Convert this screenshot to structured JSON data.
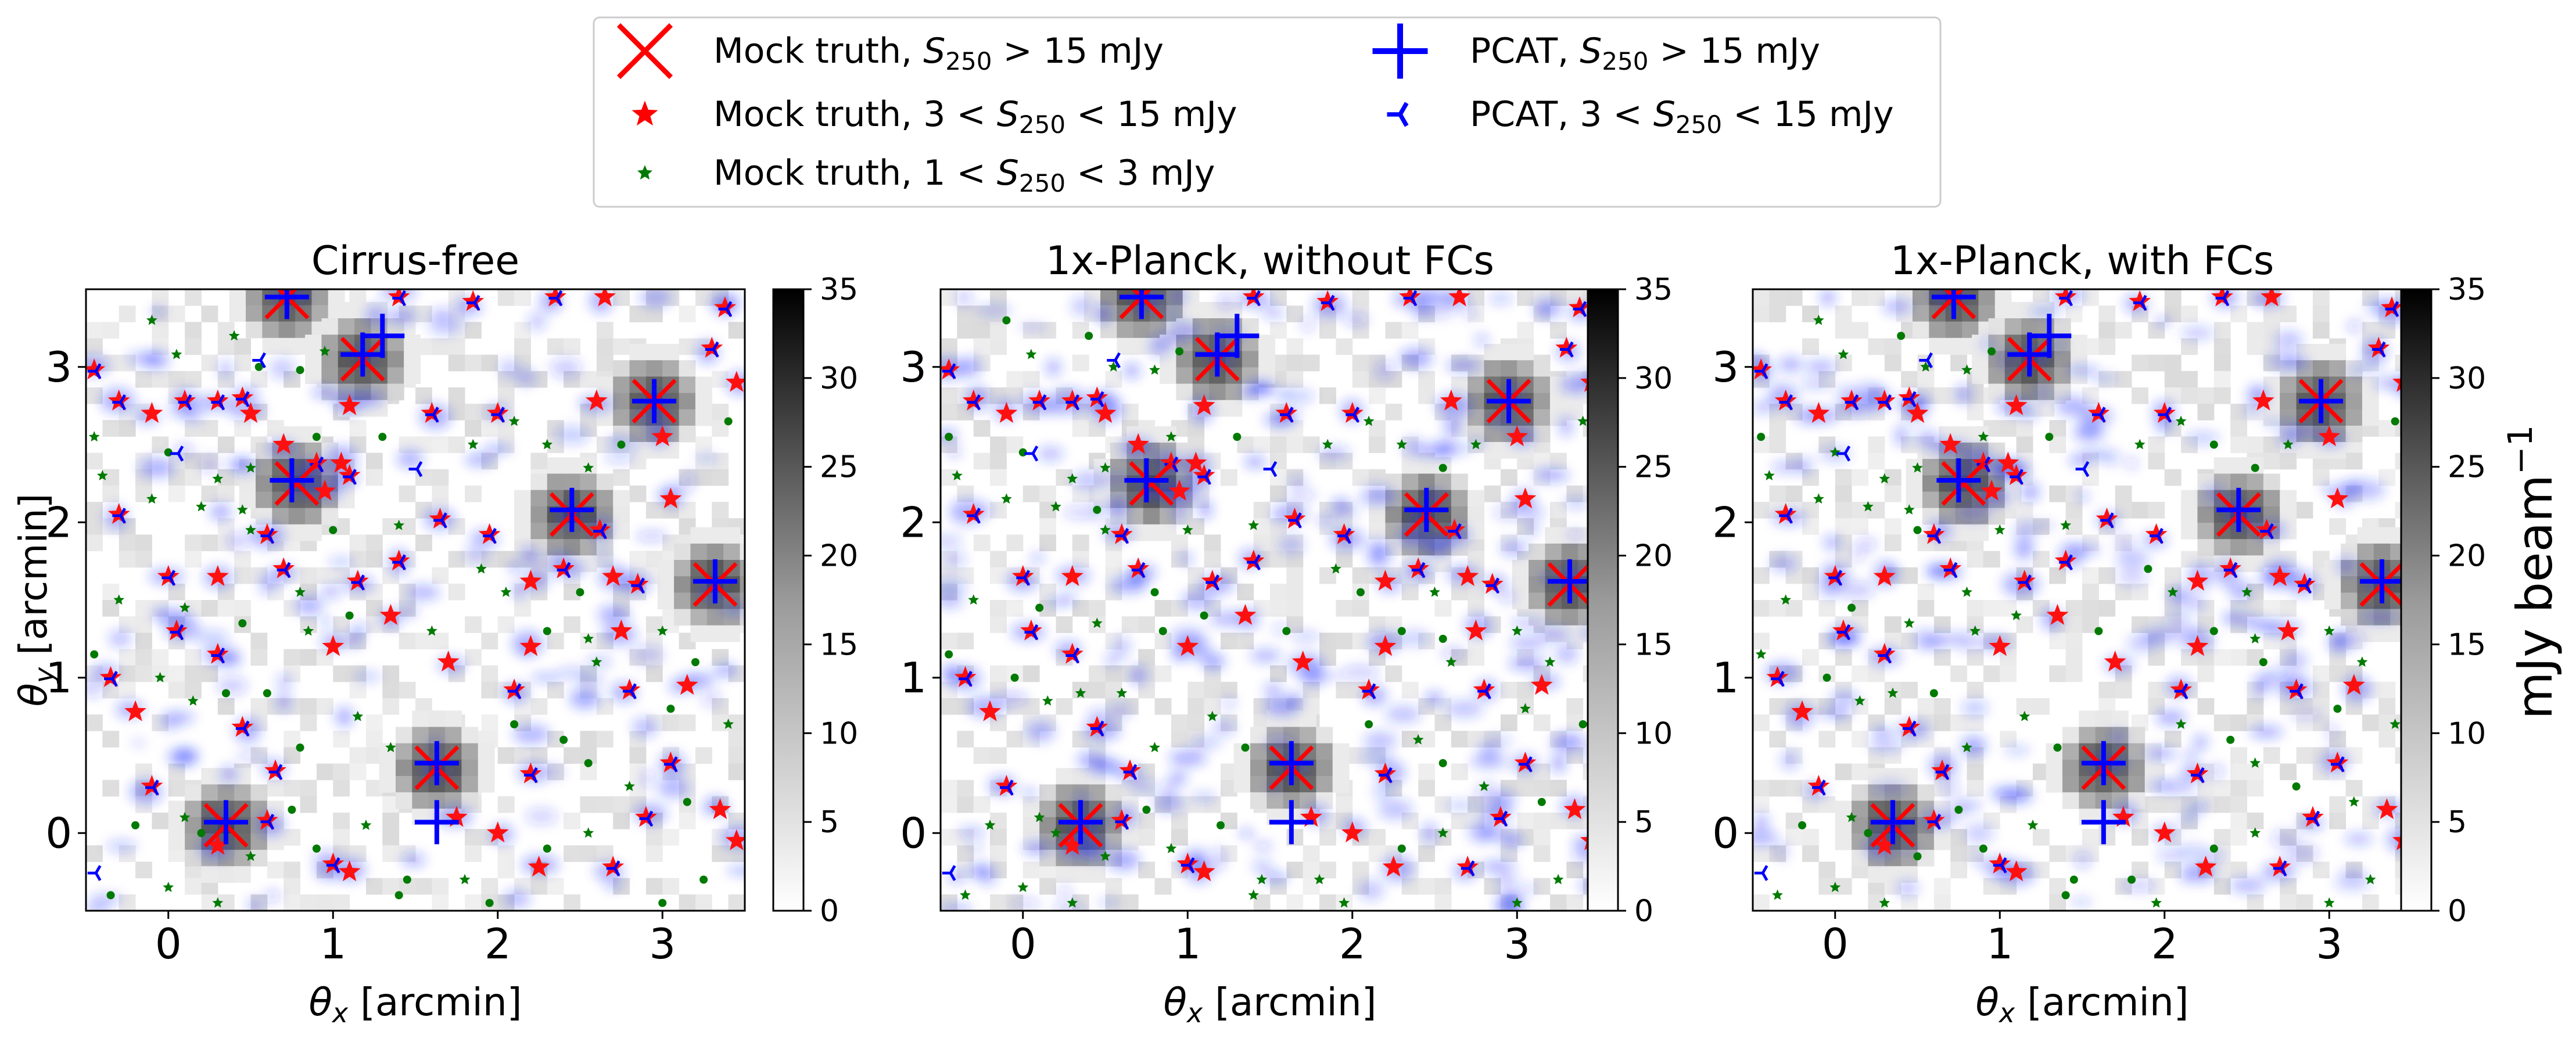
{
  "legend": {
    "items": [
      {
        "key": "mock_bright",
        "prefix": "Mock truth, ",
        "math": "S",
        "sub": "250",
        "suffix": " > 15 mJy",
        "color": "#ff0000",
        "marker": "x-cross"
      },
      {
        "key": "mock_mid",
        "prefix": "Mock truth, 3 < ",
        "math": "S",
        "sub": "250",
        "suffix": " < 15 mJy",
        "color": "#ff0000",
        "marker": "star"
      },
      {
        "key": "mock_faint",
        "prefix": "Mock truth, 1 < ",
        "math": "S",
        "sub": "250",
        "suffix": " < 3 mJy",
        "color": "#007a00",
        "marker": "small-star"
      },
      {
        "key": "pcat_bright",
        "prefix": "PCAT, ",
        "math": "S",
        "sub": "250",
        "suffix": " > 15 mJy",
        "color": "#0000ff",
        "marker": "plus"
      },
      {
        "key": "pcat_mid",
        "prefix": "PCAT, 3 < ",
        "math": "S",
        "sub": "250",
        "suffix": " < 15 mJy",
        "color": "#0000ff",
        "marker": "tri-left"
      }
    ]
  },
  "colorbar": {
    "ticks": [
      "0",
      "5",
      "10",
      "15",
      "20",
      "25",
      "30",
      "35"
    ],
    "label": "mJy beam",
    "label_sup": "−1"
  },
  "axes": {
    "xlabel_math": "θ",
    "xlabel_sub": "x",
    "xlabel_text": " [arcmin]",
    "ylabel_math": "θ",
    "ylabel_sub": "y",
    "ylabel_text": " [arcmin]",
    "xticks": [
      "0",
      "1",
      "2",
      "3"
    ],
    "yticks": [
      "0",
      "1",
      "2",
      "3"
    ]
  },
  "chart_data": [
    {
      "type": "heatmap",
      "title": "Cirrus-free",
      "xlim": [
        -0.5,
        3.5
      ],
      "ylim": [
        -0.5,
        3.5
      ],
      "colorbar_range": [
        0,
        35
      ],
      "colormap": "greys",
      "pcat_bright": [
        [
          0.72,
          3.45
        ],
        [
          1.18,
          3.08
        ],
        [
          0.75,
          2.27
        ],
        [
          2.45,
          2.08
        ],
        [
          3.32,
          1.62
        ],
        [
          2.95,
          2.78
        ],
        [
          1.63,
          0.45
        ],
        [
          1.63,
          0.07
        ],
        [
          0.35,
          0.07
        ],
        [
          1.3,
          3.2
        ]
      ],
      "mock_bright": [
        [
          0.72,
          3.45
        ],
        [
          1.18,
          3.05
        ],
        [
          0.78,
          2.25
        ],
        [
          2.45,
          2.05
        ],
        [
          1.63,
          0.42
        ],
        [
          3.32,
          1.6
        ],
        [
          2.95,
          2.78
        ],
        [
          0.35,
          0.05
        ]
      ],
      "mock_mid": [
        [
          -0.45,
          2.98
        ],
        [
          -0.3,
          2.78
        ],
        [
          -0.1,
          2.7
        ],
        [
          0.1,
          2.78
        ],
        [
          0.3,
          2.78
        ],
        [
          0.45,
          2.8
        ],
        [
          0.5,
          2.7
        ],
        [
          0.7,
          2.5
        ],
        [
          0.9,
          2.38
        ],
        [
          1.05,
          2.38
        ],
        [
          1.1,
          2.3
        ],
        [
          0.95,
          2.2
        ],
        [
          0.6,
          1.92
        ],
        [
          -0.3,
          2.05
        ],
        [
          0.0,
          1.65
        ],
        [
          0.3,
          1.65
        ],
        [
          0.7,
          1.7
        ],
        [
          1.15,
          1.62
        ],
        [
          1.4,
          1.75
        ],
        [
          1.65,
          2.02
        ],
        [
          1.95,
          1.92
        ],
        [
          2.2,
          1.62
        ],
        [
          2.4,
          1.7
        ],
        [
          2.62,
          1.95
        ],
        [
          2.7,
          1.65
        ],
        [
          2.85,
          1.6
        ],
        [
          3.05,
          2.15
        ],
        [
          3.3,
          3.12
        ],
        [
          3.38,
          3.38
        ],
        [
          2.35,
          3.45
        ],
        [
          2.65,
          3.45
        ],
        [
          1.85,
          3.42
        ],
        [
          1.4,
          3.45
        ],
        [
          1.1,
          2.75
        ],
        [
          1.6,
          2.7
        ],
        [
          2.0,
          2.7
        ],
        [
          2.6,
          2.78
        ],
        [
          3.0,
          2.55
        ],
        [
          3.45,
          2.9
        ],
        [
          -0.1,
          0.3
        ],
        [
          -0.35,
          1.0
        ],
        [
          -0.2,
          0.78
        ],
        [
          0.3,
          1.15
        ],
        [
          0.45,
          0.68
        ],
        [
          0.05,
          1.3
        ],
        [
          0.65,
          0.4
        ],
        [
          1.0,
          1.2
        ],
        [
          1.0,
          -0.2
        ],
        [
          1.35,
          1.4
        ],
        [
          2.1,
          0.92
        ],
        [
          2.2,
          1.2
        ],
        [
          2.0,
          0.0
        ],
        [
          2.2,
          0.38
        ],
        [
          2.8,
          0.92
        ],
        [
          3.15,
          0.95
        ],
        [
          3.05,
          0.45
        ],
        [
          3.35,
          0.15
        ],
        [
          3.45,
          -0.05
        ],
        [
          2.9,
          0.1
        ],
        [
          2.7,
          -0.22
        ],
        [
          2.25,
          -0.22
        ],
        [
          0.3,
          -0.08
        ],
        [
          0.6,
          0.08
        ],
        [
          1.75,
          0.1
        ],
        [
          2.75,
          1.3
        ],
        [
          1.7,
          1.1
        ],
        [
          1.1,
          -0.25
        ]
      ],
      "mock_faint": [
        [
          -0.1,
          3.3
        ],
        [
          0.05,
          3.08
        ],
        [
          0.4,
          3.2
        ],
        [
          0.55,
          3.0
        ],
        [
          0.8,
          2.98
        ],
        [
          0.95,
          3.1
        ],
        [
          -0.45,
          2.55
        ],
        [
          0.0,
          2.45
        ],
        [
          0.3,
          2.28
        ],
        [
          0.5,
          2.35
        ],
        [
          0.9,
          2.55
        ],
        [
          1.3,
          2.55
        ],
        [
          1.85,
          2.5
        ],
        [
          2.1,
          2.65
        ],
        [
          2.3,
          2.5
        ],
        [
          2.55,
          2.35
        ],
        [
          2.75,
          2.5
        ],
        [
          3.4,
          2.65
        ],
        [
          -0.4,
          2.3
        ],
        [
          -0.1,
          2.15
        ],
        [
          0.2,
          2.1
        ],
        [
          0.45,
          2.08
        ],
        [
          0.5,
          1.95
        ],
        [
          1.0,
          1.95
        ],
        [
          1.4,
          1.98
        ],
        [
          1.9,
          1.7
        ],
        [
          2.05,
          1.55
        ],
        [
          2.5,
          1.55
        ],
        [
          3.0,
          1.3
        ],
        [
          3.2,
          1.1
        ],
        [
          -0.3,
          1.5
        ],
        [
          0.1,
          1.45
        ],
        [
          0.45,
          1.35
        ],
        [
          0.8,
          1.55
        ],
        [
          0.85,
          1.3
        ],
        [
          1.1,
          1.4
        ],
        [
          1.6,
          1.3
        ],
        [
          2.3,
          1.3
        ],
        [
          2.55,
          1.25
        ],
        [
          2.6,
          1.1
        ],
        [
          -0.45,
          1.15
        ],
        [
          -0.05,
          1.0
        ],
        [
          0.15,
          0.85
        ],
        [
          0.35,
          0.9
        ],
        [
          0.6,
          0.9
        ],
        [
          0.8,
          0.55
        ],
        [
          1.15,
          0.75
        ],
        [
          1.35,
          0.55
        ],
        [
          2.1,
          0.7
        ],
        [
          2.4,
          0.6
        ],
        [
          2.55,
          0.45
        ],
        [
          3.05,
          0.8
        ],
        [
          3.4,
          0.7
        ],
        [
          -0.2,
          0.05
        ],
        [
          0.1,
          0.1
        ],
        [
          0.2,
          0.0
        ],
        [
          0.5,
          -0.15
        ],
        [
          0.75,
          0.15
        ],
        [
          0.9,
          -0.1
        ],
        [
          1.2,
          0.05
        ],
        [
          1.45,
          -0.3
        ],
        [
          1.8,
          -0.3
        ],
        [
          2.3,
          -0.1
        ],
        [
          2.55,
          0.0
        ],
        [
          2.8,
          0.3
        ],
        [
          3.15,
          0.2
        ],
        [
          3.25,
          -0.3
        ],
        [
          -0.35,
          -0.4
        ],
        [
          0.0,
          -0.35
        ],
        [
          0.3,
          -0.45
        ],
        [
          1.4,
          -0.4
        ],
        [
          1.95,
          -0.45
        ],
        [
          3.0,
          -0.45
        ]
      ],
      "pcat_mid": [
        [
          -0.45,
          2.98
        ],
        [
          -0.3,
          2.78
        ],
        [
          0.1,
          2.78
        ],
        [
          0.3,
          2.78
        ],
        [
          0.45,
          2.8
        ],
        [
          0.9,
          2.38
        ],
        [
          1.1,
          2.3
        ],
        [
          0.6,
          1.92
        ],
        [
          -0.3,
          2.05
        ],
        [
          0.0,
          1.65
        ],
        [
          0.7,
          1.7
        ],
        [
          1.15,
          1.62
        ],
        [
          1.4,
          1.75
        ],
        [
          1.65,
          2.02
        ],
        [
          1.95,
          1.92
        ],
        [
          2.4,
          1.7
        ],
        [
          2.62,
          1.95
        ],
        [
          2.85,
          1.6
        ],
        [
          3.3,
          3.12
        ],
        [
          3.38,
          3.38
        ],
        [
          2.35,
          3.45
        ],
        [
          1.85,
          3.42
        ],
        [
          1.4,
          3.45
        ],
        [
          1.6,
          2.7
        ],
        [
          2.0,
          2.7
        ],
        [
          -0.1,
          0.3
        ],
        [
          -0.35,
          1.0
        ],
        [
          0.3,
          1.15
        ],
        [
          0.45,
          0.68
        ],
        [
          0.05,
          1.3
        ],
        [
          0.65,
          0.4
        ],
        [
          1.0,
          -0.2
        ],
        [
          2.1,
          0.92
        ],
        [
          2.2,
          0.38
        ],
        [
          2.8,
          0.92
        ],
        [
          3.05,
          0.45
        ],
        [
          2.7,
          -0.22
        ],
        [
          0.6,
          0.08
        ],
        [
          -0.45,
          -0.25
        ],
        [
          0.55,
          3.05
        ],
        [
          1.5,
          2.35
        ],
        [
          0.05,
          2.45
        ],
        [
          2.9,
          0.1
        ]
      ]
    },
    {
      "type": "heatmap",
      "title": "1x-Planck, without FCs",
      "xlim": [
        -0.5,
        3.5
      ],
      "ylim": [
        -0.5,
        3.5
      ],
      "colorbar_range": [
        0,
        35
      ],
      "colormap": "greys"
    },
    {
      "type": "heatmap",
      "title": "1x-Planck, with FCs",
      "xlim": [
        -0.5,
        3.5
      ],
      "ylim": [
        -0.5,
        3.5
      ],
      "colorbar_range": [
        0,
        35
      ],
      "colormap": "greys"
    }
  ]
}
